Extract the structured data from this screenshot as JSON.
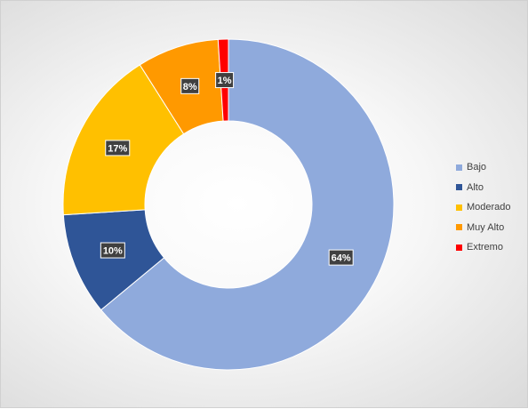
{
  "chart_data": {
    "type": "pie",
    "variant": "donut",
    "title": "",
    "categories": [
      "Bajo",
      "Alto",
      "Moderado",
      "Muy Alto",
      "Extremo"
    ],
    "values": [
      64,
      10,
      17,
      8,
      1
    ],
    "labels": [
      "64%",
      "10%",
      "17%",
      "8%",
      "1%"
    ],
    "colors": [
      "#8FAADC",
      "#2F5597",
      "#FFC000",
      "#FF9900",
      "#FF0000"
    ],
    "legend": {
      "position": "right",
      "entries": [
        "Bajo",
        "Alto",
        "Moderado",
        "Muy Alto",
        "Extremo"
      ]
    }
  }
}
